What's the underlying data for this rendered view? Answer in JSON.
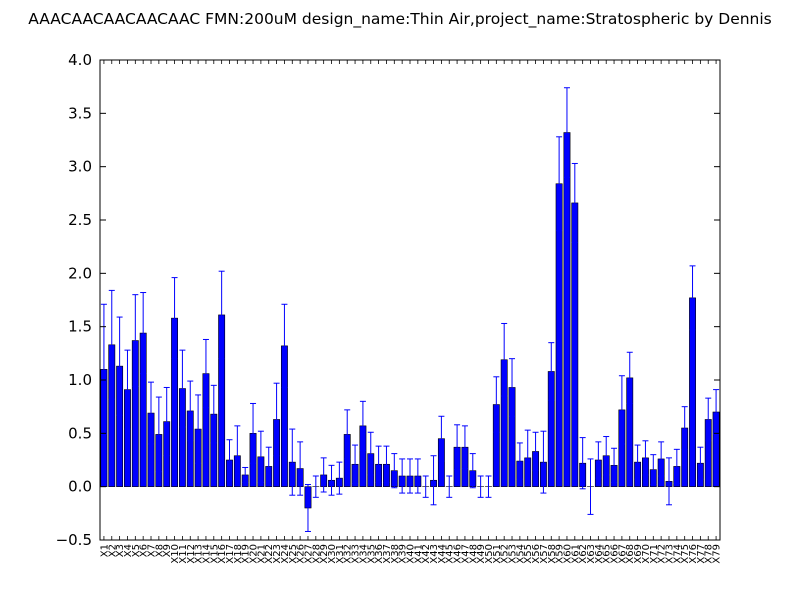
{
  "chart_data": {
    "type": "bar",
    "title": "AAACAACAACAACAAC  FMN:200uM  design_name:Thin Air,project_name:Stratospheric by Dennis",
    "xlabel": "",
    "ylabel": "",
    "ylim": [
      -0.5,
      4.0
    ],
    "yticks": [
      "−0.5",
      "0.0",
      "0.5",
      "1.0",
      "1.5",
      "2.0",
      "2.5",
      "3.0",
      "3.5",
      "4.0"
    ],
    "grid": false,
    "legend": "none",
    "bar_color": "#0000ff",
    "error_color": "#0000ff",
    "categories": [
      "X1",
      "X2",
      "X3",
      "X4",
      "X5",
      "X6",
      "X7",
      "X8",
      "X9",
      "X10",
      "X11",
      "X12",
      "X13",
      "X14",
      "X15",
      "X16",
      "X17",
      "X18",
      "X19",
      "X20",
      "X21",
      "X22",
      "X23",
      "X24",
      "X25",
      "X26",
      "X27",
      "X28",
      "X29",
      "X30",
      "X31",
      "X32",
      "X33",
      "X34",
      "X35",
      "X36",
      "X37",
      "X38",
      "X39",
      "X40",
      "X41",
      "X42",
      "X43",
      "X44",
      "X45",
      "X46",
      "X47",
      "X48",
      "X49",
      "X50",
      "X51",
      "X52",
      "X53",
      "X54",
      "X55",
      "X56",
      "X57",
      "X58",
      "X59",
      "X60",
      "X61",
      "X62",
      "X63",
      "X64",
      "X65",
      "X66",
      "X67",
      "X68",
      "X69",
      "X70",
      "X71",
      "X72",
      "X73",
      "X74",
      "X75",
      "X76",
      "X77",
      "X78",
      "X79"
    ],
    "values": [
      1.1,
      1.33,
      1.13,
      0.91,
      1.37,
      1.44,
      0.69,
      0.49,
      0.61,
      1.58,
      0.92,
      0.71,
      0.54,
      1.06,
      0.68,
      1.61,
      0.25,
      0.29,
      0.11,
      0.5,
      0.28,
      0.19,
      0.63,
      1.32,
      0.23,
      0.17,
      -0.2,
      0.0,
      0.11,
      0.06,
      0.08,
      0.49,
      0.21,
      0.57,
      0.31,
      0.21,
      0.21,
      0.15,
      0.1,
      0.1,
      0.1,
      0.0,
      0.06,
      0.45,
      0.0,
      0.37,
      0.37,
      0.15,
      0.0,
      0.0,
      0.77,
      1.19,
      0.93,
      0.24,
      0.27,
      0.33,
      0.23,
      1.08,
      2.84,
      3.32,
      2.66,
      0.22,
      0.0,
      0.25,
      0.29,
      0.2,
      0.72,
      1.02,
      0.23,
      0.27,
      0.16,
      0.26,
      0.05,
      0.19,
      0.55,
      1.77,
      0.22,
      0.63,
      0.7
    ],
    "errors": [
      0.61,
      0.51,
      0.46,
      0.37,
      0.43,
      0.38,
      0.29,
      0.35,
      0.32,
      0.38,
      0.36,
      0.28,
      0.32,
      0.32,
      0.27,
      0.41,
      0.19,
      0.28,
      0.07,
      0.28,
      0.24,
      0.18,
      0.34,
      0.39,
      0.31,
      0.25,
      0.22,
      0.1,
      0.16,
      0.14,
      0.15,
      0.23,
      0.18,
      0.23,
      0.2,
      0.17,
      0.17,
      0.16,
      0.16,
      0.16,
      0.16,
      0.1,
      0.23,
      0.21,
      0.1,
      0.21,
      0.2,
      0.16,
      0.1,
      0.1,
      0.26,
      0.34,
      0.27,
      0.17,
      0.26,
      0.18,
      0.29,
      0.27,
      0.44,
      0.42,
      0.37,
      0.24,
      0.26,
      0.17,
      0.18,
      0.16,
      0.32,
      0.24,
      0.16,
      0.16,
      0.14,
      0.16,
      0.22,
      0.16,
      0.2,
      0.3,
      0.15,
      0.2,
      0.21
    ]
  }
}
